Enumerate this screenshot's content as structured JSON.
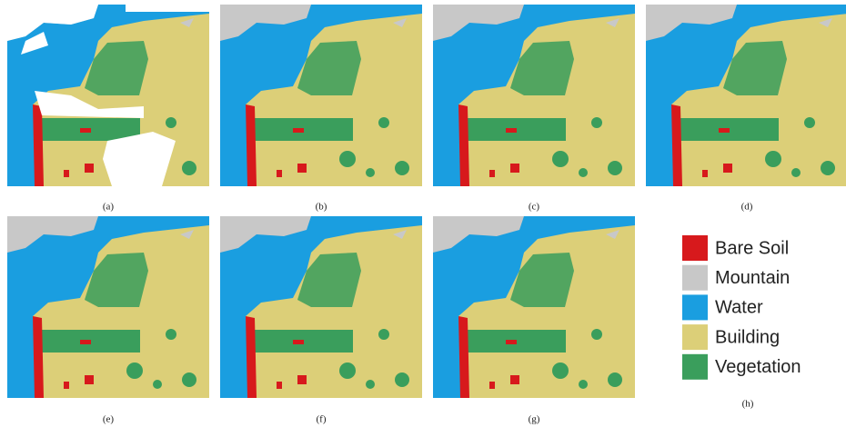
{
  "panels": [
    {
      "label": "(a)"
    },
    {
      "label": "(b)"
    },
    {
      "label": "(c)"
    },
    {
      "label": "(d)"
    },
    {
      "label": "(e)"
    },
    {
      "label": "(f)"
    },
    {
      "label": "(g)"
    },
    {
      "label": "(h)"
    }
  ],
  "legend": [
    {
      "name": "Bare Soil",
      "color": "#d7191c"
    },
    {
      "name": "Mountain",
      "color": "#c8c8c8"
    },
    {
      "name": "Water",
      "color": "#1a9ee0"
    },
    {
      "name": "Building",
      "color": "#dccf78"
    },
    {
      "name": "Vegetation",
      "color": "#3a9e5c"
    }
  ]
}
